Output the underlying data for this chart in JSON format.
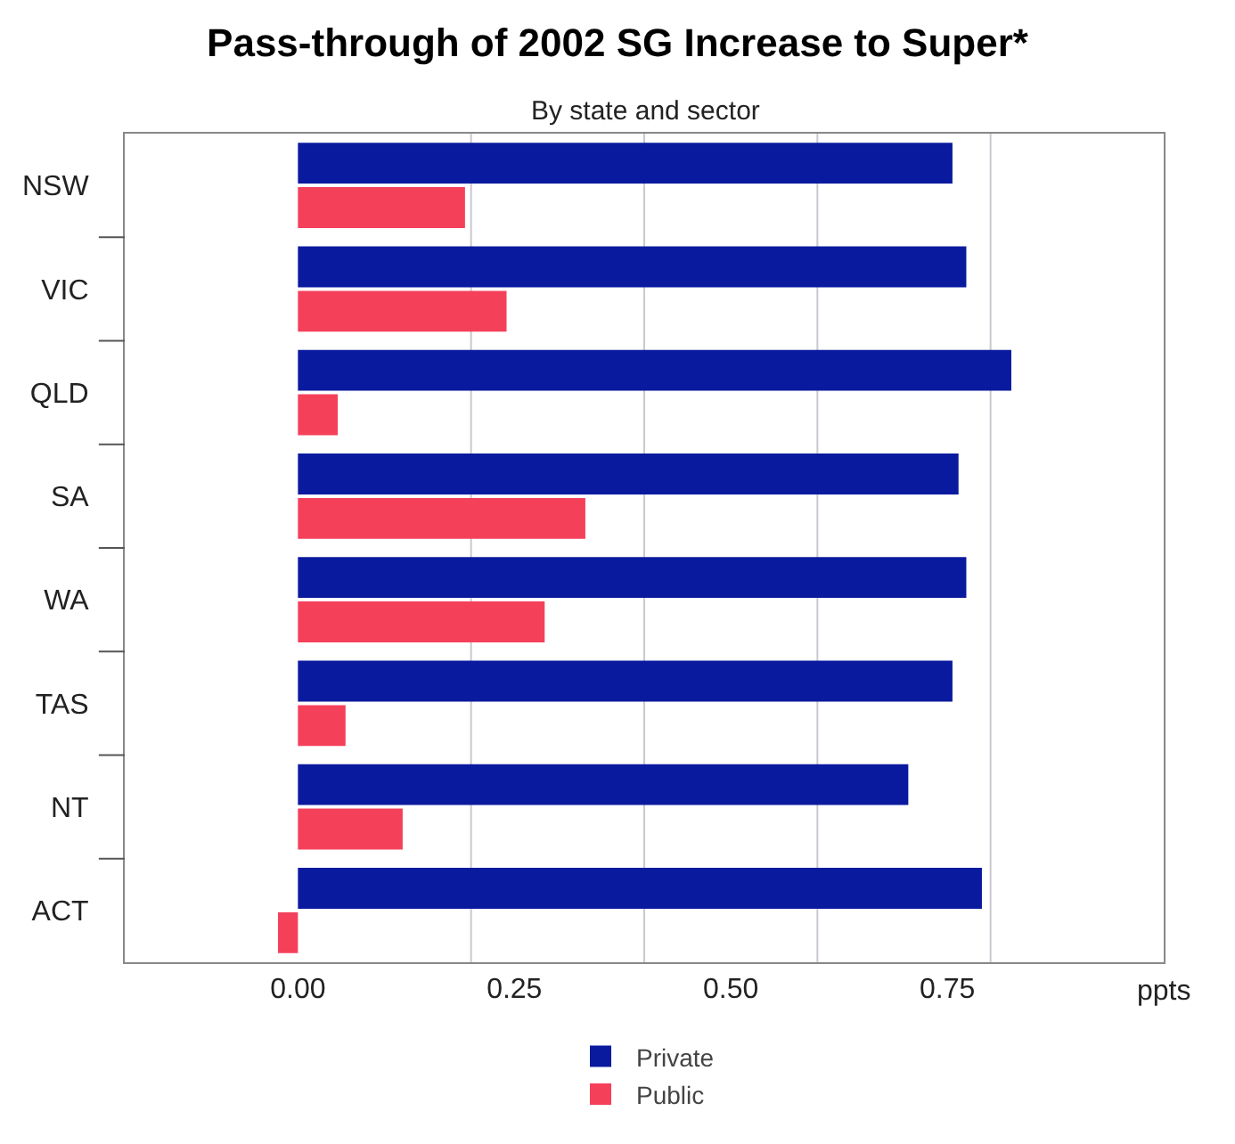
{
  "chart_data": {
    "type": "bar",
    "orientation": "horizontal",
    "title": "Pass-through of 2002 SG Increase to Super*",
    "subtitle": "By state and sector",
    "xlabel": "ppts",
    "categories": [
      "NSW",
      "VIC",
      "QLD",
      "SA",
      "WA",
      "TAS",
      "NT",
      "ACT"
    ],
    "series": [
      {
        "name": "Private",
        "color": "#0a1a9e",
        "values": [
          0.756,
          0.772,
          0.824,
          0.763,
          0.772,
          0.756,
          0.705,
          0.79
        ]
      },
      {
        "name": "Public",
        "color": "#f5405a",
        "values": [
          0.193,
          0.241,
          0.046,
          0.332,
          0.285,
          0.055,
          0.121,
          -0.023
        ]
      }
    ],
    "xlim": [
      -0.2,
      1.0
    ],
    "xticks": [
      {
        "value": 0.25,
        "label": "0.25"
      },
      {
        "value": 0.5,
        "label": "0.50"
      },
      {
        "value": 0.75,
        "label": "0.75"
      },
      {
        "value": 0,
        "label": "0.00"
      },
      {
        "value": 0.2,
        "label": null
      },
      {
        "value": 0.4,
        "label": null
      },
      {
        "value": 0.6,
        "label": null
      },
      {
        "value": 0.8,
        "label": null
      }
    ],
    "grid": "x",
    "legend": "bottom"
  }
}
